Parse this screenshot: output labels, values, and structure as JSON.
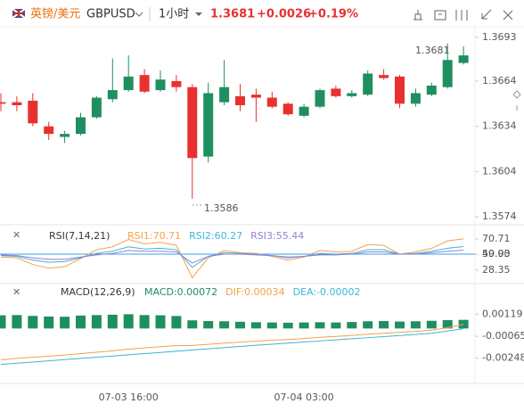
{
  "header": {
    "name": "英镑/美元",
    "symbol": "GBPUSD",
    "interval": "1小时",
    "price": "1.3681",
    "change": "+0.0026",
    "change_pct": "+0.19%"
  },
  "chart_data": [
    {
      "type": "candlestick",
      "up_color": "#1f8f5f",
      "down_color": "#e8312f",
      "categories": [
        null,
        null,
        null,
        null,
        null,
        null,
        null,
        null,
        "07-03 16:00",
        null,
        null,
        null,
        null,
        null,
        null,
        null,
        null,
        null,
        null,
        "07-04 03:00",
        null,
        null,
        null,
        null,
        null,
        null,
        null,
        null,
        null,
        null
      ],
      "open": [
        1.365,
        1.365,
        1.3651,
        1.3634,
        1.3627,
        1.3629,
        1.364,
        1.3652,
        1.3658,
        1.3668,
        1.3658,
        1.3664,
        1.366,
        1.3614,
        1.365,
        1.3654,
        1.3655,
        1.3653,
        1.3649,
        1.3641,
        1.3647,
        1.3659,
        1.3654,
        1.3655,
        1.3668,
        1.3667,
        1.3649,
        1.3655,
        1.366,
        1.3676
      ],
      "high": [
        1.3656,
        1.3654,
        1.3656,
        1.3637,
        1.3631,
        1.3643,
        1.3654,
        1.3679,
        1.3681,
        1.3672,
        1.3671,
        1.3668,
        1.3662,
        1.3663,
        1.3678,
        1.3662,
        1.3659,
        1.3657,
        1.365,
        1.3649,
        1.3659,
        1.3661,
        1.3658,
        1.3671,
        1.3672,
        1.3668,
        1.3659,
        1.3663,
        1.3689,
        1.3687
      ],
      "low": [
        1.3644,
        1.3644,
        1.3634,
        1.3625,
        1.3623,
        1.3628,
        1.3639,
        1.365,
        1.3657,
        1.3656,
        1.3657,
        1.3657,
        1.3586,
        1.361,
        1.3648,
        1.3644,
        1.3637,
        1.3646,
        1.3641,
        1.364,
        1.3646,
        1.3653,
        1.3653,
        1.3654,
        1.3665,
        1.3646,
        1.3647,
        1.3654,
        1.3659,
        1.3675
      ],
      "close": [
        1.3649,
        1.3648,
        1.3636,
        1.3629,
        1.3629,
        1.364,
        1.3653,
        1.3658,
        1.3667,
        1.3657,
        1.3665,
        1.366,
        1.3613,
        1.3656,
        1.366,
        1.3648,
        1.3653,
        1.3647,
        1.3642,
        1.3647,
        1.3658,
        1.3654,
        1.3656,
        1.3669,
        1.3666,
        1.3649,
        1.3656,
        1.3661,
        1.3678,
        1.3681
      ],
      "annotations": [
        "1.3681",
        "1.3586"
      ],
      "ylim": [
        1.357,
        1.37
      ],
      "yticks": [
        1.3693,
        1.3664,
        1.3634,
        1.3604,
        1.3574
      ]
    },
    {
      "type": "line",
      "title": "RSI(7,14,21)",
      "ylim": [
        10,
        90
      ],
      "yticks": [
        70.71,
        {
          "value": 50,
          "label": "50.00"
        },
        49.93,
        28.35
      ],
      "level_line": {
        "value": 50,
        "color": "#3d9be9"
      },
      "series": [
        {
          "name": "RSI1:70.71",
          "color": "#f4a14a",
          "values": [
            46,
            45,
            36,
            31,
            33,
            44,
            56,
            60,
            70,
            64,
            66,
            62,
            18,
            45,
            55,
            52,
            51,
            47,
            42,
            46,
            55,
            53,
            54,
            63,
            62,
            50,
            53,
            58,
            68,
            70.71
          ]
        },
        {
          "name": "RSI2:60.27",
          "color": "#3cb6d8",
          "values": [
            48,
            47,
            42,
            39,
            40,
            45,
            51,
            54,
            60,
            57,
            58,
            56,
            32,
            47,
            52,
            51,
            50,
            48,
            45,
            47,
            51,
            50,
            51,
            56,
            56,
            50,
            51,
            54,
            58,
            60.27
          ]
        },
        {
          "name": "RSI3:55.44",
          "color": "#9a7fd1",
          "values": [
            49,
            48,
            45,
            43,
            43,
            46,
            49,
            51,
            55,
            54,
            54,
            53,
            38,
            47,
            50,
            50,
            49,
            48,
            46,
            47,
            49,
            49,
            50,
            53,
            53,
            50,
            50,
            52,
            54,
            55.44
          ]
        }
      ]
    },
    {
      "type": "macd",
      "title": "MACD(12,26,9)",
      "ylim": [
        -0.00325,
        0.00211
      ],
      "yticks": [
        0.00119,
        -0.00065,
        -0.00248
      ],
      "series": [
        {
          "name": "MACD:0.00072",
          "color": "#1f8f5f",
          "values": [
            0.0011,
            0.00112,
            0.00105,
            0.001,
            0.00098,
            0.00108,
            0.00112,
            0.00115,
            0.00119,
            0.00112,
            0.0011,
            0.00104,
            0.00068,
            0.00062,
            0.0006,
            0.00056,
            0.00052,
            0.0005,
            0.00048,
            0.0005,
            0.00052,
            0.0005,
            0.00054,
            0.0006,
            0.00062,
            0.00058,
            0.0006,
            0.00064,
            0.0007,
            0.00072
          ]
        },
        {
          "name": "DIF:0.00034",
          "color": "#f4a14a",
          "values": [
            -0.00262,
            -0.0025,
            -0.0024,
            -0.00232,
            -0.00222,
            -0.0021,
            -0.00198,
            -0.00186,
            -0.00172,
            -0.00162,
            -0.00152,
            -0.00144,
            -0.00142,
            -0.00132,
            -0.00122,
            -0.00114,
            -0.00106,
            -0.00098,
            -0.00092,
            -0.00084,
            -0.00074,
            -0.00066,
            -0.00058,
            -0.00048,
            -0.0004,
            -0.00032,
            -0.00024,
            -0.00014,
            6e-05,
            0.00034
          ]
        },
        {
          "name": "DEA:-0.00002",
          "color": "#3cb6d8",
          "values": [
            -0.003,
            -0.0029,
            -0.0028,
            -0.0027,
            -0.0026,
            -0.0025,
            -0.0024,
            -0.0023,
            -0.0022,
            -0.0021,
            -0.002,
            -0.0019,
            -0.0018,
            -0.0017,
            -0.0016,
            -0.0015,
            -0.0014,
            -0.00131,
            -0.00122,
            -0.00113,
            -0.00104,
            -0.00095,
            -0.00086,
            -0.00077,
            -0.00068,
            -0.00059,
            -0.0005,
            -0.0004,
            -0.00021,
            -2e-05
          ]
        }
      ]
    }
  ]
}
